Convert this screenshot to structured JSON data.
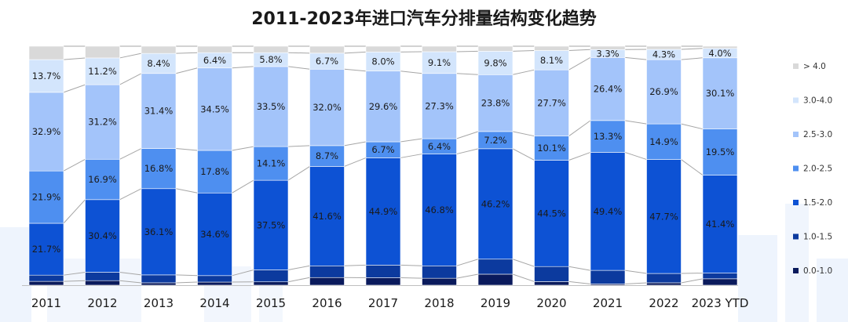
{
  "chart_data": {
    "type": "bar",
    "stacked": true,
    "percent": true,
    "title": "2011-2023年进口汽车分排量结构变化趋势",
    "categories": [
      "2011",
      "2012",
      "2013",
      "2014",
      "2015",
      "2016",
      "2017",
      "2018",
      "2019",
      "2020",
      "2021",
      "2022",
      "2023 YTD"
    ],
    "series": [
      {
        "name": "0.0-1.0",
        "color": "#0a1a5c",
        "values": [
          1.6,
          1.9,
          1.0,
          1.3,
          1.4,
          3.2,
          3.1,
          2.9,
          4.6,
          1.5,
          0.5,
          1.0,
          2.7
        ],
        "labels": [
          "",
          "",
          "",
          "",
          "",
          "",
          "",
          "",
          "",
          "",
          "",
          "",
          ""
        ]
      },
      {
        "name": "1.0-1.5",
        "color": "#0c3a9e",
        "values": [
          2.6,
          3.5,
          3.3,
          2.7,
          5.0,
          4.9,
          5.3,
          5.2,
          6.3,
          6.3,
          5.7,
          3.9,
          2.4
        ],
        "labels": [
          "",
          "",
          "",
          "",
          "",
          "",
          "",
          "",
          "",
          "",
          "",
          "",
          ""
        ]
      },
      {
        "name": "1.5-2.0",
        "color": "#0d52d4",
        "values": [
          21.7,
          30.4,
          36.1,
          34.6,
          37.5,
          41.6,
          44.9,
          46.8,
          46.2,
          44.5,
          49.4,
          47.7,
          41.4
        ],
        "labels": [
          "21.7%",
          "30.4%",
          "36.1%",
          "34.6%",
          "37.5%",
          "41.6%",
          "44.9%",
          "46.8%",
          "46.2%",
          "44.5%",
          "49.4%",
          "47.7%",
          "41.4%"
        ]
      },
      {
        "name": "2.0-2.5",
        "color": "#4e8ff0",
        "values": [
          21.9,
          16.9,
          16.8,
          17.8,
          14.1,
          8.7,
          6.7,
          6.4,
          7.2,
          10.1,
          13.3,
          14.9,
          19.5
        ],
        "labels": [
          "21.9%",
          "16.9%",
          "16.8%",
          "17.8%",
          "14.1%",
          "8.7%",
          "6.7%",
          "6.4%",
          "7.2%",
          "10.1%",
          "13.3%",
          "14.9%",
          "19.5%"
        ]
      },
      {
        "name": "2.5-3.0",
        "color": "#a3c4fa",
        "values": [
          32.9,
          31.2,
          31.4,
          34.5,
          33.5,
          32.0,
          29.6,
          27.3,
          23.8,
          27.7,
          26.4,
          26.9,
          30.1
        ],
        "labels": [
          "32.9%",
          "31.2%",
          "31.4%",
          "34.5%",
          "33.5%",
          "32.0%",
          "29.6%",
          "27.3%",
          "23.8%",
          "27.7%",
          "26.4%",
          "26.9%",
          "30.1%"
        ]
      },
      {
        "name": "3.0-4.0",
        "color": "#d3e5fc",
        "values": [
          13.7,
          11.2,
          8.4,
          6.4,
          5.8,
          6.7,
          8.0,
          9.1,
          9.8,
          8.1,
          3.3,
          4.3,
          4.0
        ],
        "labels": [
          "13.7%",
          "11.2%",
          "8.4%",
          "6.4%",
          "5.8%",
          "6.7%",
          "8.0%",
          "9.1%",
          "9.8%",
          "8.1%",
          "3.3%",
          "4.3%",
          "4.0%"
        ]
      },
      {
        "name": "> 4.0",
        "color": "#d9d9d9",
        "values": [
          5.6,
          4.9,
          3.0,
          2.7,
          2.7,
          2.9,
          2.4,
          2.3,
          2.1,
          1.8,
          1.4,
          1.3,
          0.9
        ],
        "labels": [
          "",
          "",
          "",
          "",
          "",
          "",
          "",
          "",
          "",
          "",
          "",
          "",
          ""
        ]
      }
    ],
    "xlabel": "",
    "ylabel": "",
    "ylim": [
      0,
      100
    ],
    "legend_position": "right",
    "legend_order": [
      "> 4.0",
      "3.0-4.0",
      "2.5-3.0",
      "2.0-2.5",
      "1.5-2.0",
      "1.0-1.5",
      "0.0-1.0"
    ]
  }
}
